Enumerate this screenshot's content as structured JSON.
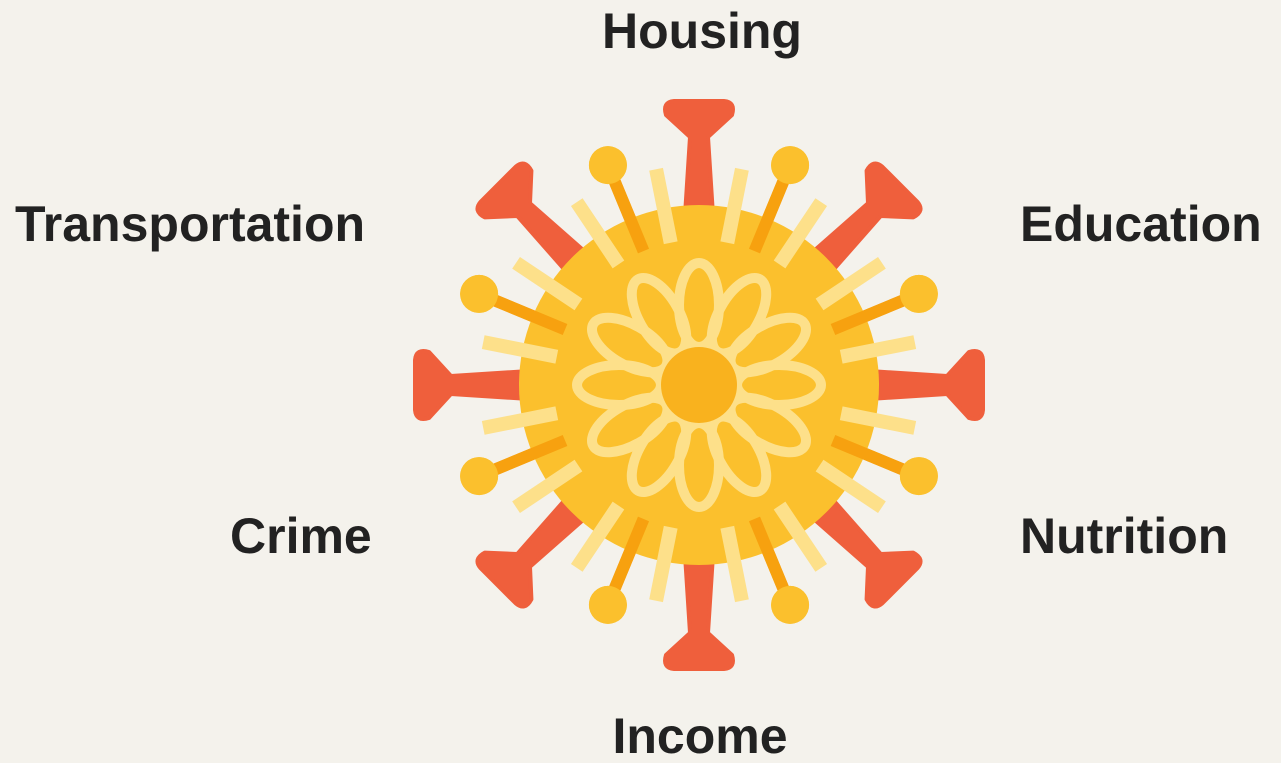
{
  "labels": [
    "Housing",
    "Transportation",
    "Education",
    "Crime",
    "Nutrition",
    "Income"
  ]
}
